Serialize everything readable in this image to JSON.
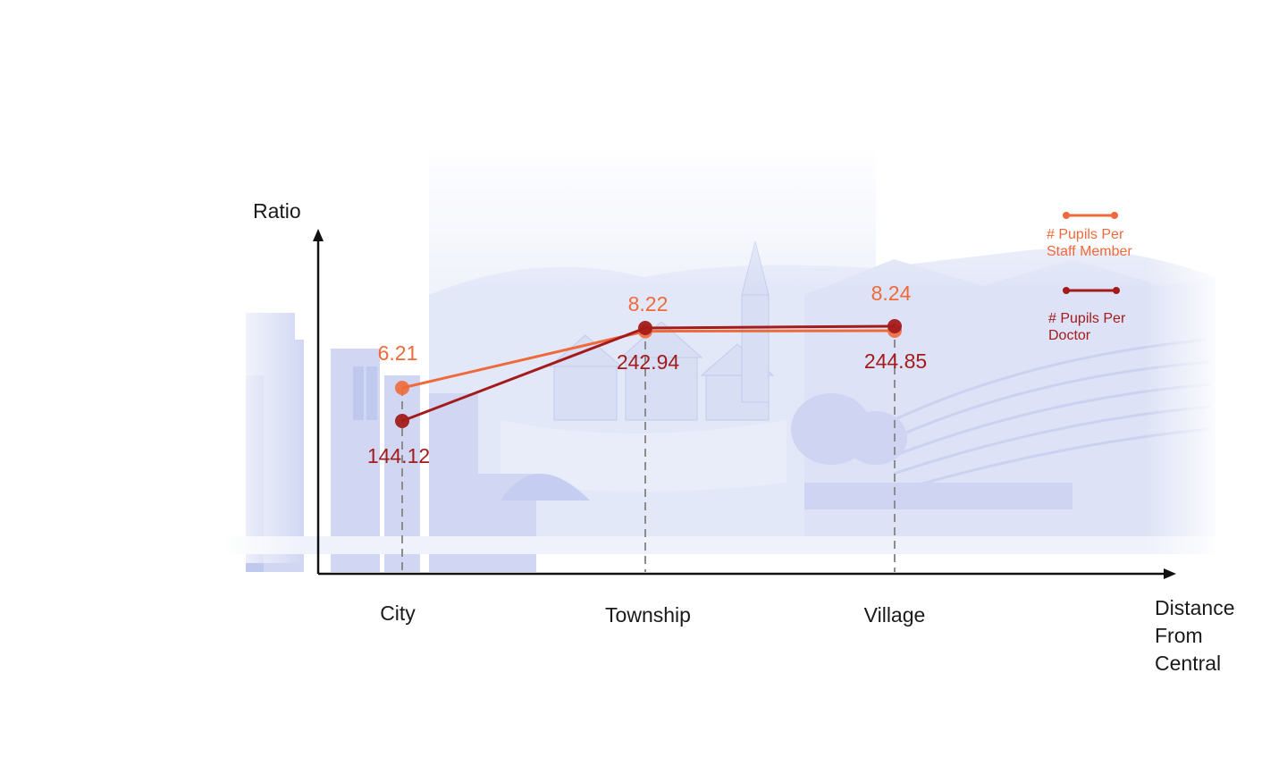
{
  "chart_data": {
    "type": "line",
    "ylabel": "Ratio",
    "xlabel_lines": [
      "Distance",
      "From",
      "Central"
    ],
    "categories": [
      "City",
      "Township",
      "Village"
    ],
    "series": [
      {
        "name_lines": [
          "# Pupils Per",
          "Staff Member"
        ],
        "values": [
          6.21,
          8.22,
          8.24
        ],
        "labels": [
          "6.21",
          "8.22",
          "8.24"
        ],
        "color": "#ef6a3a"
      },
      {
        "name_lines": [
          "# Pupils Per",
          "Doctor"
        ],
        "values": [
          144.12,
          242.94,
          244.85
        ],
        "labels": [
          "144.12",
          "242.94",
          "244.85"
        ],
        "color": "#a31b1b"
      }
    ],
    "grid": false,
    "legend_position": "top-right"
  },
  "colors": {
    "background_scene": "#d4dbf4",
    "scene_dark": "#b7c2ea",
    "axis": "#111111",
    "dashed_guides": "#8c8c8c"
  }
}
